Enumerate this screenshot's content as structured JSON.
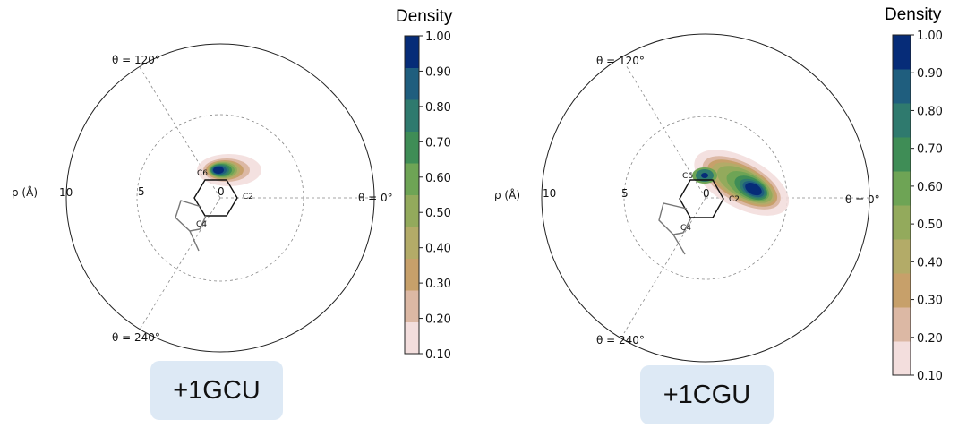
{
  "chart_data": [
    {
      "type": "polar-density",
      "panel_label": "+1GCU",
      "radial_axis_label": "ρ (Å)",
      "radial_ticks": [
        "10",
        "5",
        "0"
      ],
      "angle_labels": [
        "θ = 120°",
        "θ = 0°",
        "θ = 240°"
      ],
      "atom_labels": [
        "C6",
        "C2",
        "C4"
      ],
      "colorbar": {
        "title": "Density",
        "ticks": [
          "1.00",
          "0.90",
          "0.80",
          "0.70",
          "0.60",
          "0.50",
          "0.40",
          "0.30",
          "0.20",
          "0.10"
        ],
        "levels": [
          0.1,
          0.2,
          0.3,
          0.4,
          0.5,
          0.6,
          0.7,
          0.8,
          0.9,
          1.0
        ],
        "colors": [
          "#f3dedd",
          "#dcb8a4",
          "#c7a06a",
          "#b3ab68",
          "#93aa5c",
          "#6ea455",
          "#3f8d56",
          "#2f7a6e",
          "#1f5e7e",
          "#062c78"
        ]
      },
      "density_peak": {
        "rho": 2.2,
        "theta_deg": 80,
        "max_density": 1.0
      }
    },
    {
      "type": "polar-density",
      "panel_label": "+1CGU",
      "radial_axis_label": "ρ (Å)",
      "radial_ticks": [
        "10",
        "5",
        "0"
      ],
      "angle_labels": [
        "θ = 120°",
        "θ = 0°",
        "θ = 240°"
      ],
      "atom_labels": [
        "C6",
        "C2",
        "C4"
      ],
      "colorbar": {
        "title": "Density",
        "ticks": [
          "1.00",
          "0.90",
          "0.80",
          "0.70",
          "0.60",
          "0.50",
          "0.40",
          "0.30",
          "0.20",
          "0.10"
        ],
        "levels": [
          0.1,
          0.2,
          0.3,
          0.4,
          0.5,
          0.6,
          0.7,
          0.8,
          0.9,
          1.0
        ],
        "colors": [
          "#f3dedd",
          "#dcb8a4",
          "#c7a06a",
          "#b3ab68",
          "#93aa5c",
          "#6ea455",
          "#3f8d56",
          "#2f7a6e",
          "#1f5e7e",
          "#062c78"
        ]
      },
      "density_peak": {
        "rho": 3.0,
        "theta_deg": 20,
        "max_density": 1.0
      }
    }
  ]
}
